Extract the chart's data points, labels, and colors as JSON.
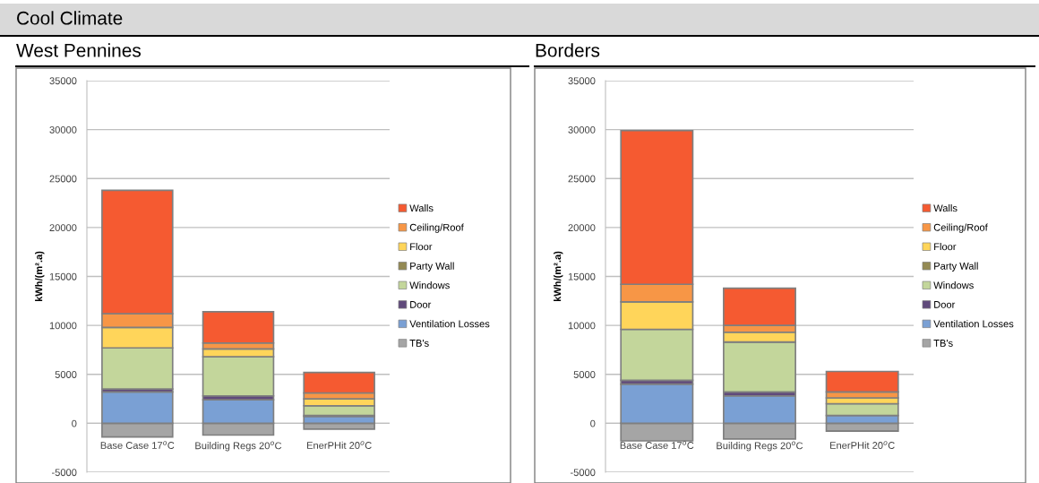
{
  "chart_data": [
    {
      "type": "bar",
      "stacked": true,
      "title": "West Pennines",
      "annotations": [
        "Cool Climate"
      ],
      "ylabel": "kWh/(m².a)",
      "categories": [
        "Base Case 17$^{o}$C",
        "Building Regs 20$^{o}$C",
        "EnerPHit 20$^{o}$C"
      ],
      "ylim": [
        -5000,
        35000
      ],
      "yticks": [
        -5000,
        0,
        5000,
        10000,
        15000,
        20000,
        25000,
        30000,
        35000
      ],
      "grid": "y",
      "legend": "right",
      "series": [
        {
          "name": "TB's",
          "color": "#a5a5a5",
          "values": [
            -1400,
            -1200,
            -600
          ]
        },
        {
          "name": "Ventilation Losses",
          "color": "#7aa0d4",
          "values": [
            3200,
            2400,
            700
          ]
        },
        {
          "name": "Door",
          "color": "#604a7b",
          "values": [
            300,
            400,
            100
          ]
        },
        {
          "name": "Windows",
          "color": "#c3d69b",
          "values": [
            4200,
            4000,
            1000
          ]
        },
        {
          "name": "Party Wall",
          "color": "#948a54",
          "values": [
            0,
            0,
            0
          ]
        },
        {
          "name": "Floor",
          "color": "#ffd55a",
          "values": [
            2100,
            800,
            700
          ]
        },
        {
          "name": "Ceiling/Roof",
          "color": "#f79646",
          "values": [
            1400,
            600,
            600
          ]
        },
        {
          "name": "Walls",
          "color": "#f55a31",
          "values": [
            12600,
            3200,
            2100
          ]
        }
      ]
    },
    {
      "type": "bar",
      "stacked": true,
      "title": "Borders",
      "ylabel": "kWh/(m².a)",
      "categories": [
        "Base Case 17$^{o}$C",
        "Building Regs 20$^{o}$C",
        "EnerPHit 20$^{o}$C"
      ],
      "ylim": [
        -5000,
        35000
      ],
      "yticks": [
        -5000,
        0,
        5000,
        10000,
        15000,
        20000,
        25000,
        30000,
        35000
      ],
      "grid": "y",
      "legend": "right",
      "series": [
        {
          "name": "TB's",
          "color": "#a5a5a5",
          "values": [
            -1800,
            -1600,
            -800
          ]
        },
        {
          "name": "Ventilation Losses",
          "color": "#7aa0d4",
          "values": [
            4000,
            2800,
            800
          ]
        },
        {
          "name": "Door",
          "color": "#604a7b",
          "values": [
            400,
            400,
            null
          ]
        },
        {
          "name": "Windows",
          "color": "#c3d69b",
          "values": [
            5200,
            5100,
            1200
          ]
        },
        {
          "name": "Party Wall",
          "color": "#948a54",
          "values": [
            0,
            0,
            0
          ]
        },
        {
          "name": "Floor",
          "color": "#ffd55a",
          "values": [
            2800,
            1000,
            600
          ]
        },
        {
          "name": "Ceiling/Roof",
          "color": "#f79646",
          "values": [
            1800,
            700,
            600
          ]
        },
        {
          "name": "Walls",
          "color": "#f55a31",
          "values": [
            15700,
            3800,
            2100
          ]
        }
      ]
    }
  ]
}
